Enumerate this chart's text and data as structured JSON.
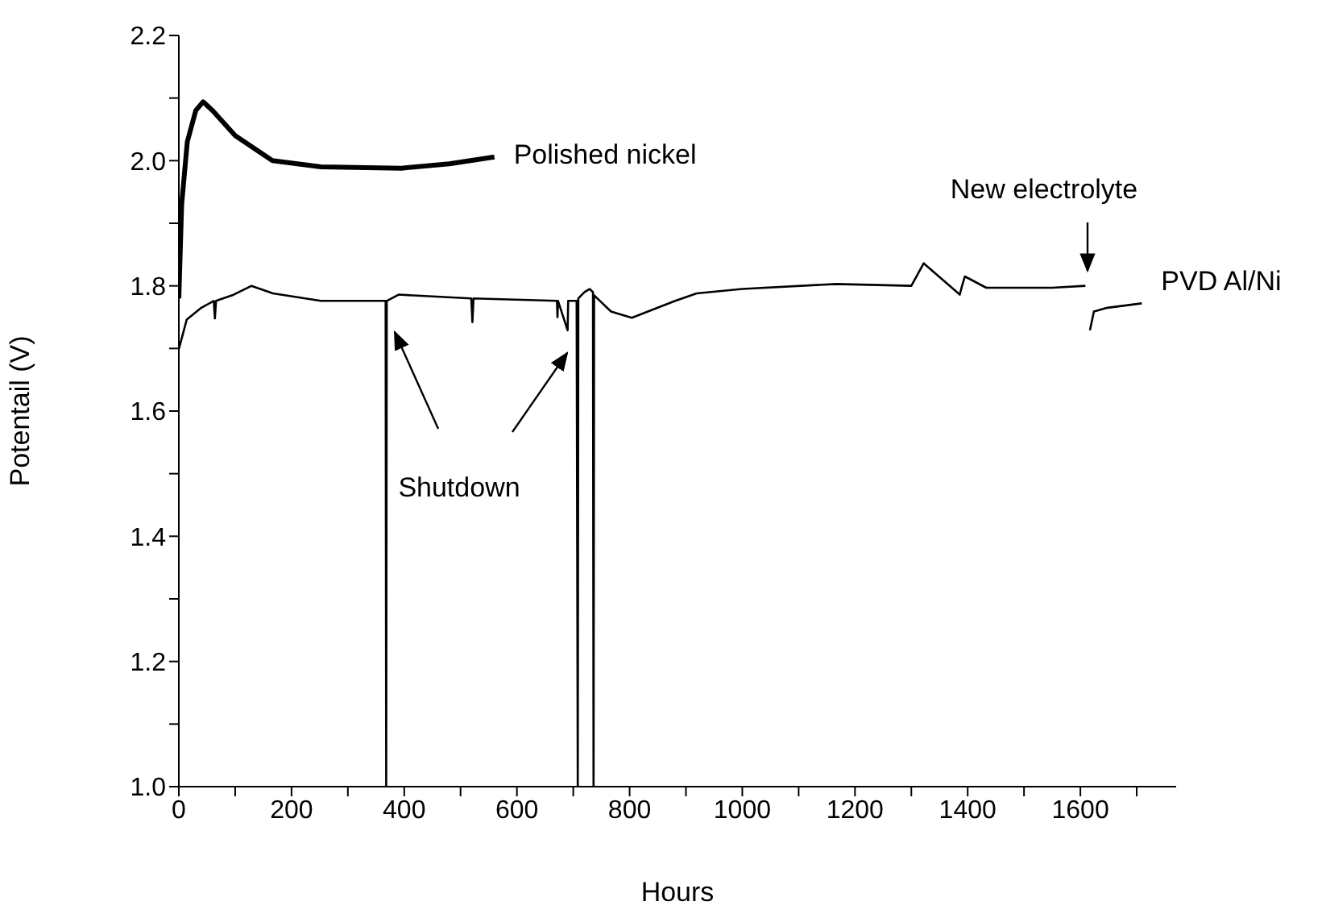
{
  "chart_data": {
    "type": "line",
    "xlabel": "Hours",
    "ylabel": "Potentail (V)",
    "xlim": [
      0,
      1770
    ],
    "ylim": [
      1.0,
      2.2
    ],
    "xticks": [
      0,
      {
        "value": 100,
        "label": null
      },
      200,
      {
        "value": 300,
        "label": null
      },
      400,
      {
        "value": 500,
        "label": null
      },
      600,
      {
        "value": 700,
        "label": null
      },
      800,
      {
        "value": 900,
        "label": null
      },
      1000,
      {
        "value": 1100,
        "label": null
      },
      1200,
      {
        "value": 1300,
        "label": null
      },
      1400,
      {
        "value": 1500,
        "label": null
      },
      1600,
      {
        "value": 1700,
        "label": null
      }
    ],
    "yticks": [
      {
        "value": 1.0,
        "label": "1.0"
      },
      {
        "value": 1.1,
        "label": null
      },
      {
        "value": 1.2,
        "label": "1.2"
      },
      {
        "value": 1.3,
        "label": null
      },
      {
        "value": 1.4,
        "label": "1.4"
      },
      {
        "value": 1.5,
        "label": null
      },
      {
        "value": 1.6,
        "label": "1.6"
      },
      {
        "value": 1.7,
        "label": null
      },
      {
        "value": 1.8,
        "label": "1.8"
      },
      {
        "value": 1.9,
        "label": null
      },
      {
        "value": 2.0,
        "label": "2.0"
      },
      {
        "value": 2.1,
        "label": null
      },
      {
        "value": 2.2,
        "label": "2.2"
      }
    ],
    "marker": "none",
    "line_style": "solid",
    "series": [
      {
        "name": "Polished nickel",
        "color": "#000000",
        "x": [
          0,
          5,
          15,
          30,
          43,
          60,
          100,
          166,
          252,
          395,
          480,
          560
        ],
        "values": [
          1.78,
          1.93,
          2.03,
          2.08,
          2.094,
          2.08,
          2.04,
          2.0,
          1.99,
          1.988,
          1.995,
          2.006
        ]
      },
      {
        "name": "PVD Al/Ni",
        "color": "#000000",
        "x": [
          0,
          14,
          40,
          62,
          64,
          66,
          95,
          129,
          167,
          252,
          367,
          368,
          369,
          390,
          519,
          521,
          523,
          671,
          672,
          673,
          690,
          691,
          692,
          706,
          708,
          709,
          720,
          729,
          735,
          736,
          737,
          767,
          804,
          881,
          919,
          1000,
          1167,
          1300,
          1322,
          1386,
          1390,
          1395,
          1433,
          1550,
          1609,
          1610,
          1617,
          1624,
          1648,
          1709
        ],
        "values": [
          1.699,
          1.746,
          1.765,
          1.776,
          1.748,
          1.776,
          1.785,
          1.8,
          1.788,
          1.776,
          1.776,
          1.0,
          1.776,
          1.786,
          1.78,
          1.742,
          1.78,
          1.776,
          1.75,
          1.776,
          1.729,
          1.776,
          1.776,
          1.776,
          1.0,
          1.78,
          1.79,
          1.795,
          1.79,
          1.0,
          1.785,
          1.759,
          1.749,
          1.776,
          1.788,
          1.795,
          1.803,
          1.8,
          1.836,
          1.786,
          1.8,
          1.815,
          1.797,
          1.797,
          1.8,
          null,
          1.729,
          1.759,
          1.765,
          1.772
        ]
      }
    ],
    "annotations": [
      "Shutdown",
      "New electrolyte"
    ]
  }
}
